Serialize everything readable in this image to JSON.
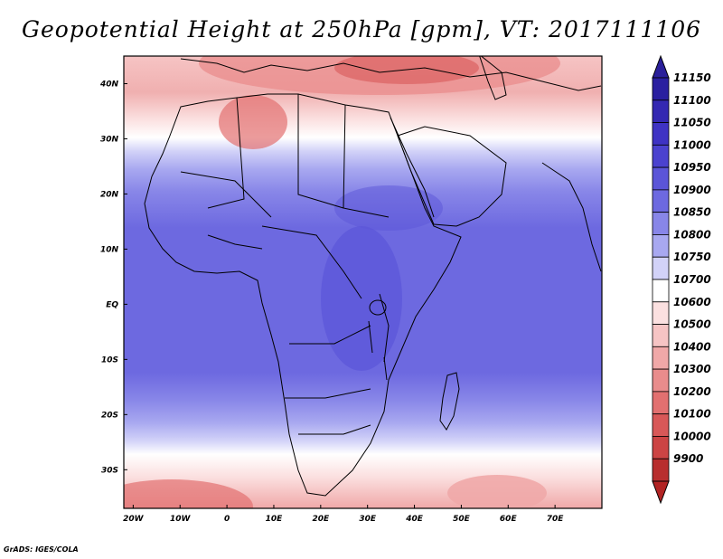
{
  "title": "Geopotential Height at 250hPa [gpm], VT: 2017111106",
  "credit": "GrADS: IGES/COLA",
  "map": {
    "lat_labels": [
      {
        "label": "40N",
        "value": 40
      },
      {
        "label": "30N",
        "value": 30
      },
      {
        "label": "20N",
        "value": 20
      },
      {
        "label": "10N",
        "value": 10
      },
      {
        "label": "EQ",
        "value": 0
      },
      {
        "label": "10S",
        "value": -10
      },
      {
        "label": "20S",
        "value": -20
      },
      {
        "label": "30S",
        "value": -30
      }
    ],
    "lon_labels": [
      {
        "label": "20W",
        "value": -20
      },
      {
        "label": "10W",
        "value": -10
      },
      {
        "label": "0",
        "value": 0
      },
      {
        "label": "10E",
        "value": 10
      },
      {
        "label": "20E",
        "value": 20
      },
      {
        "label": "30E",
        "value": 30
      },
      {
        "label": "40E",
        "value": 40
      },
      {
        "label": "50E",
        "value": 50
      },
      {
        "label": "60E",
        "value": 60
      },
      {
        "label": "70E",
        "value": 70
      }
    ],
    "lon_range": [
      -22,
      80
    ],
    "lat_range": [
      -37,
      45
    ]
  },
  "colorbar": {
    "levels": [
      {
        "value": "11150",
        "color": "#2a1fa0"
      },
      {
        "value": "11100",
        "color": "#3428b2"
      },
      {
        "value": "11050",
        "color": "#3f33c4"
      },
      {
        "value": "11000",
        "color": "#4b42cf"
      },
      {
        "value": "10950",
        "color": "#5b55d8"
      },
      {
        "value": "10900",
        "color": "#6d69e0"
      },
      {
        "value": "10850",
        "color": "#8886e8"
      },
      {
        "value": "10800",
        "color": "#a8a8f0"
      },
      {
        "value": "10750",
        "color": "#d2d2f8"
      },
      {
        "value": "10700",
        "color": "#ffffff"
      },
      {
        "value": "10600",
        "color": "#fbe0e0"
      },
      {
        "value": "10500",
        "color": "#f6c4c4"
      },
      {
        "value": "10400",
        "color": "#f0a8a8"
      },
      {
        "value": "10300",
        "color": "#e98c8c"
      },
      {
        "value": "10200",
        "color": "#e27070"
      },
      {
        "value": "10100",
        "color": "#d85858"
      },
      {
        "value": "10000",
        "color": "#cc4444"
      },
      {
        "value": "9900",
        "color": "#b82e2e"
      }
    ],
    "top_color": "#2a1f9a",
    "bottom_color": "#b22424"
  }
}
